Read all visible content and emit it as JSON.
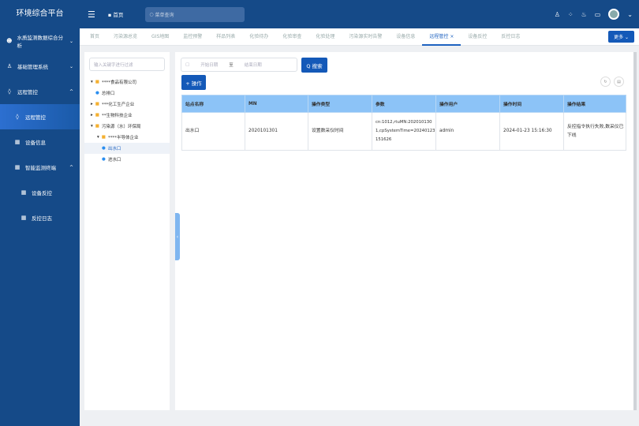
{
  "app_title": "环境综合平台",
  "header": {
    "home": "首页",
    "search_placeholder": "菜单查询",
    "icons": [
      "shirt-icon",
      "grid-icon",
      "flame-icon",
      "monitor-icon",
      "avatar"
    ]
  },
  "sidebar": {
    "items": [
      {
        "label": "水质监测数据综合分析",
        "chev": "⌄"
      },
      {
        "label": "基础管理系统",
        "chev": "⌄"
      },
      {
        "label": "远程管控",
        "chev": "^"
      },
      {
        "label": "远程管控"
      },
      {
        "label": "设备信息"
      },
      {
        "label": "智能监测终端",
        "chev": "^"
      },
      {
        "label": "设备反控"
      },
      {
        "label": "反控日志"
      }
    ]
  },
  "tabs": [
    "首页",
    "污染源总览",
    "GIS地图",
    "监控预警",
    "样品列表",
    "化验待办",
    "化验审查",
    "化验处理",
    "污染源实时告警",
    "设备信息",
    "远程管控",
    "设备反控",
    "反控日志"
  ],
  "tab_close": "×",
  "more": "更多 ⌄",
  "tree": {
    "filter_placeholder": "输入关键字进行过滤",
    "nodes": [
      {
        "label": "****食品有限公司",
        "type": "folder",
        "arrow": "▾"
      },
      {
        "label": "总排口",
        "type": "pin"
      },
      {
        "label": "***化工生产企业",
        "type": "folder",
        "arrow": "▸"
      },
      {
        "label": "**生物科技企业",
        "type": "folder",
        "arrow": "▸"
      },
      {
        "label": "污染源（水）环保局",
        "type": "folder",
        "arrow": "▾"
      },
      {
        "label": "****半导体企业",
        "type": "folder",
        "arrow": "▾"
      },
      {
        "label": "出水口",
        "type": "pin"
      },
      {
        "label": "进水口",
        "type": "pin"
      }
    ]
  },
  "filters": {
    "start": "开始日期",
    "to": "至",
    "end": "结束日期",
    "search": "Q 搜索",
    "add": "+ 操作"
  },
  "table": {
    "headers": [
      "站点名称",
      "MN",
      "操作类型",
      "参数",
      "操作用户",
      "操作时间",
      "操作结果"
    ],
    "rows": [
      [
        "出水口",
        "2020101301",
        "设置数采仪时间",
        "cn:1012,rtuMN:2020101301,cpSystemTime=20240123151626",
        "admin",
        "2024-01-23 15:16:30",
        "反控指令执行失败,数采仪已下线"
      ]
    ]
  }
}
